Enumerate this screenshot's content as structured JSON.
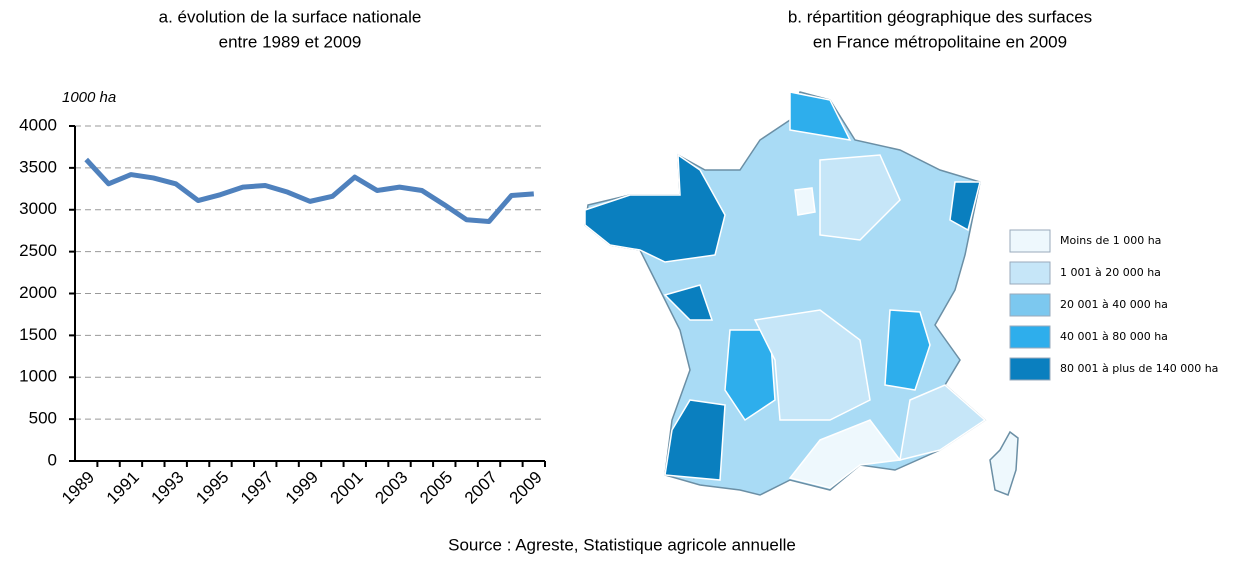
{
  "chart_data": [
    {
      "type": "line",
      "title": [
        "a. évolution de la surface nationale",
        "entre 1989 et 2009"
      ],
      "y_unit": "1000 ha",
      "categories": [
        "1989",
        null,
        "1991",
        null,
        "1993",
        null,
        "1995",
        null,
        "1997",
        null,
        "1999",
        null,
        "2001",
        null,
        "2003",
        null,
        "2005",
        null,
        "2007",
        null,
        "2009"
      ],
      "values": [
        3600,
        3310,
        3420,
        3380,
        3310,
        3110,
        3180,
        3270,
        3290,
        3210,
        3100,
        3160,
        3390,
        3230,
        3270,
        3230,
        3060,
        2880,
        2860,
        3170,
        3190
      ],
      "color": "#4f81bd",
      "ylim": [
        0,
        4000
      ],
      "yticks": [
        0,
        500,
        1000,
        1500,
        2000,
        2500,
        3000,
        3500,
        4000
      ],
      "grid": true
    },
    {
      "type": "map",
      "title": [
        "b. répartition géographique des surfaces",
        "en France métropolitaine en 2009"
      ],
      "legend": [
        {
          "label": "Moins de 1 000 ha",
          "color": "#eef8fd"
        },
        {
          "label": "1 001 à 20 000 ha",
          "color": "#c6e6f8"
        },
        {
          "label": "20 001 à 40 000 ha",
          "color": "#7cc8ef"
        },
        {
          "label": "40 001 à 80 000 ha",
          "color": "#2eaeec"
        },
        {
          "label": "80 001 à plus de 140 000 ha",
          "color": "#0a7fbf"
        }
      ]
    }
  ],
  "source": "Source : Agreste, Statistique agricole annuelle"
}
